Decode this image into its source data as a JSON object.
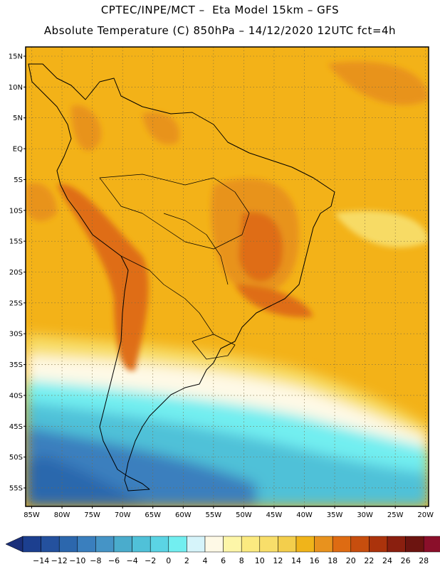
{
  "header": {
    "line1": "CPTEC/INPE/MCT –  Eta Model 15km – GFS",
    "line2": "Absolute Temperature (C) 850hPa – 14/12/2020 12UTC fct=4h"
  },
  "axes": {
    "lat_labels": [
      "15N",
      "10N",
      "5N",
      "EQ",
      "5S",
      "10S",
      "15S",
      "20S",
      "25S",
      "30S",
      "35S",
      "40S",
      "45S",
      "50S",
      "55S"
    ],
    "lon_labels": [
      "85W",
      "80W",
      "75W",
      "70W",
      "65W",
      "60W",
      "55W",
      "50W",
      "45W",
      "40W",
      "35W",
      "30W",
      "25W",
      "20W"
    ],
    "lat_values": [
      15,
      10,
      5,
      0,
      -5,
      -10,
      -15,
      -20,
      -25,
      -30,
      -35,
      -40,
      -45,
      -50,
      -55
    ],
    "lon_values": [
      -85,
      -80,
      -75,
      -70,
      -65,
      -60,
      -55,
      -50,
      -45,
      -40,
      -35,
      -30,
      -25,
      -20
    ],
    "lat_range": [
      -58,
      16.5
    ],
    "lon_range": [
      -86,
      -19.5
    ],
    "grid": "dotted"
  },
  "colorbar": {
    "labels": [
      "-14",
      "-12",
      "-10",
      "-8",
      "-6",
      "-4",
      "-2",
      "0",
      "2",
      "4",
      "6",
      "8",
      "10",
      "12",
      "14",
      "16",
      "18",
      "20",
      "22",
      "24",
      "26",
      "28"
    ],
    "colors": [
      "#1c3f8f",
      "#24519e",
      "#2c67ad",
      "#3a7fbe",
      "#4594c6",
      "#4aaccc",
      "#50c1d8",
      "#5bd4e4",
      "#72eef0",
      "#d6f4fa",
      "#fef9e6",
      "#fdf6a8",
      "#fbea80",
      "#f8de6a",
      "#f3ce4c",
      "#f0b41a",
      "#e8921e",
      "#de6b12",
      "#c74e0e",
      "#ab330c",
      "#8a1f0f",
      "#6c1410",
      "#8a0f2a"
    ],
    "low_end_color": "#1a2f7a",
    "high_end_color": "#8a0030"
  },
  "colors": {
    "frame": "#000000",
    "coast": "#000000",
    "base_warm": "#f3b218"
  }
}
